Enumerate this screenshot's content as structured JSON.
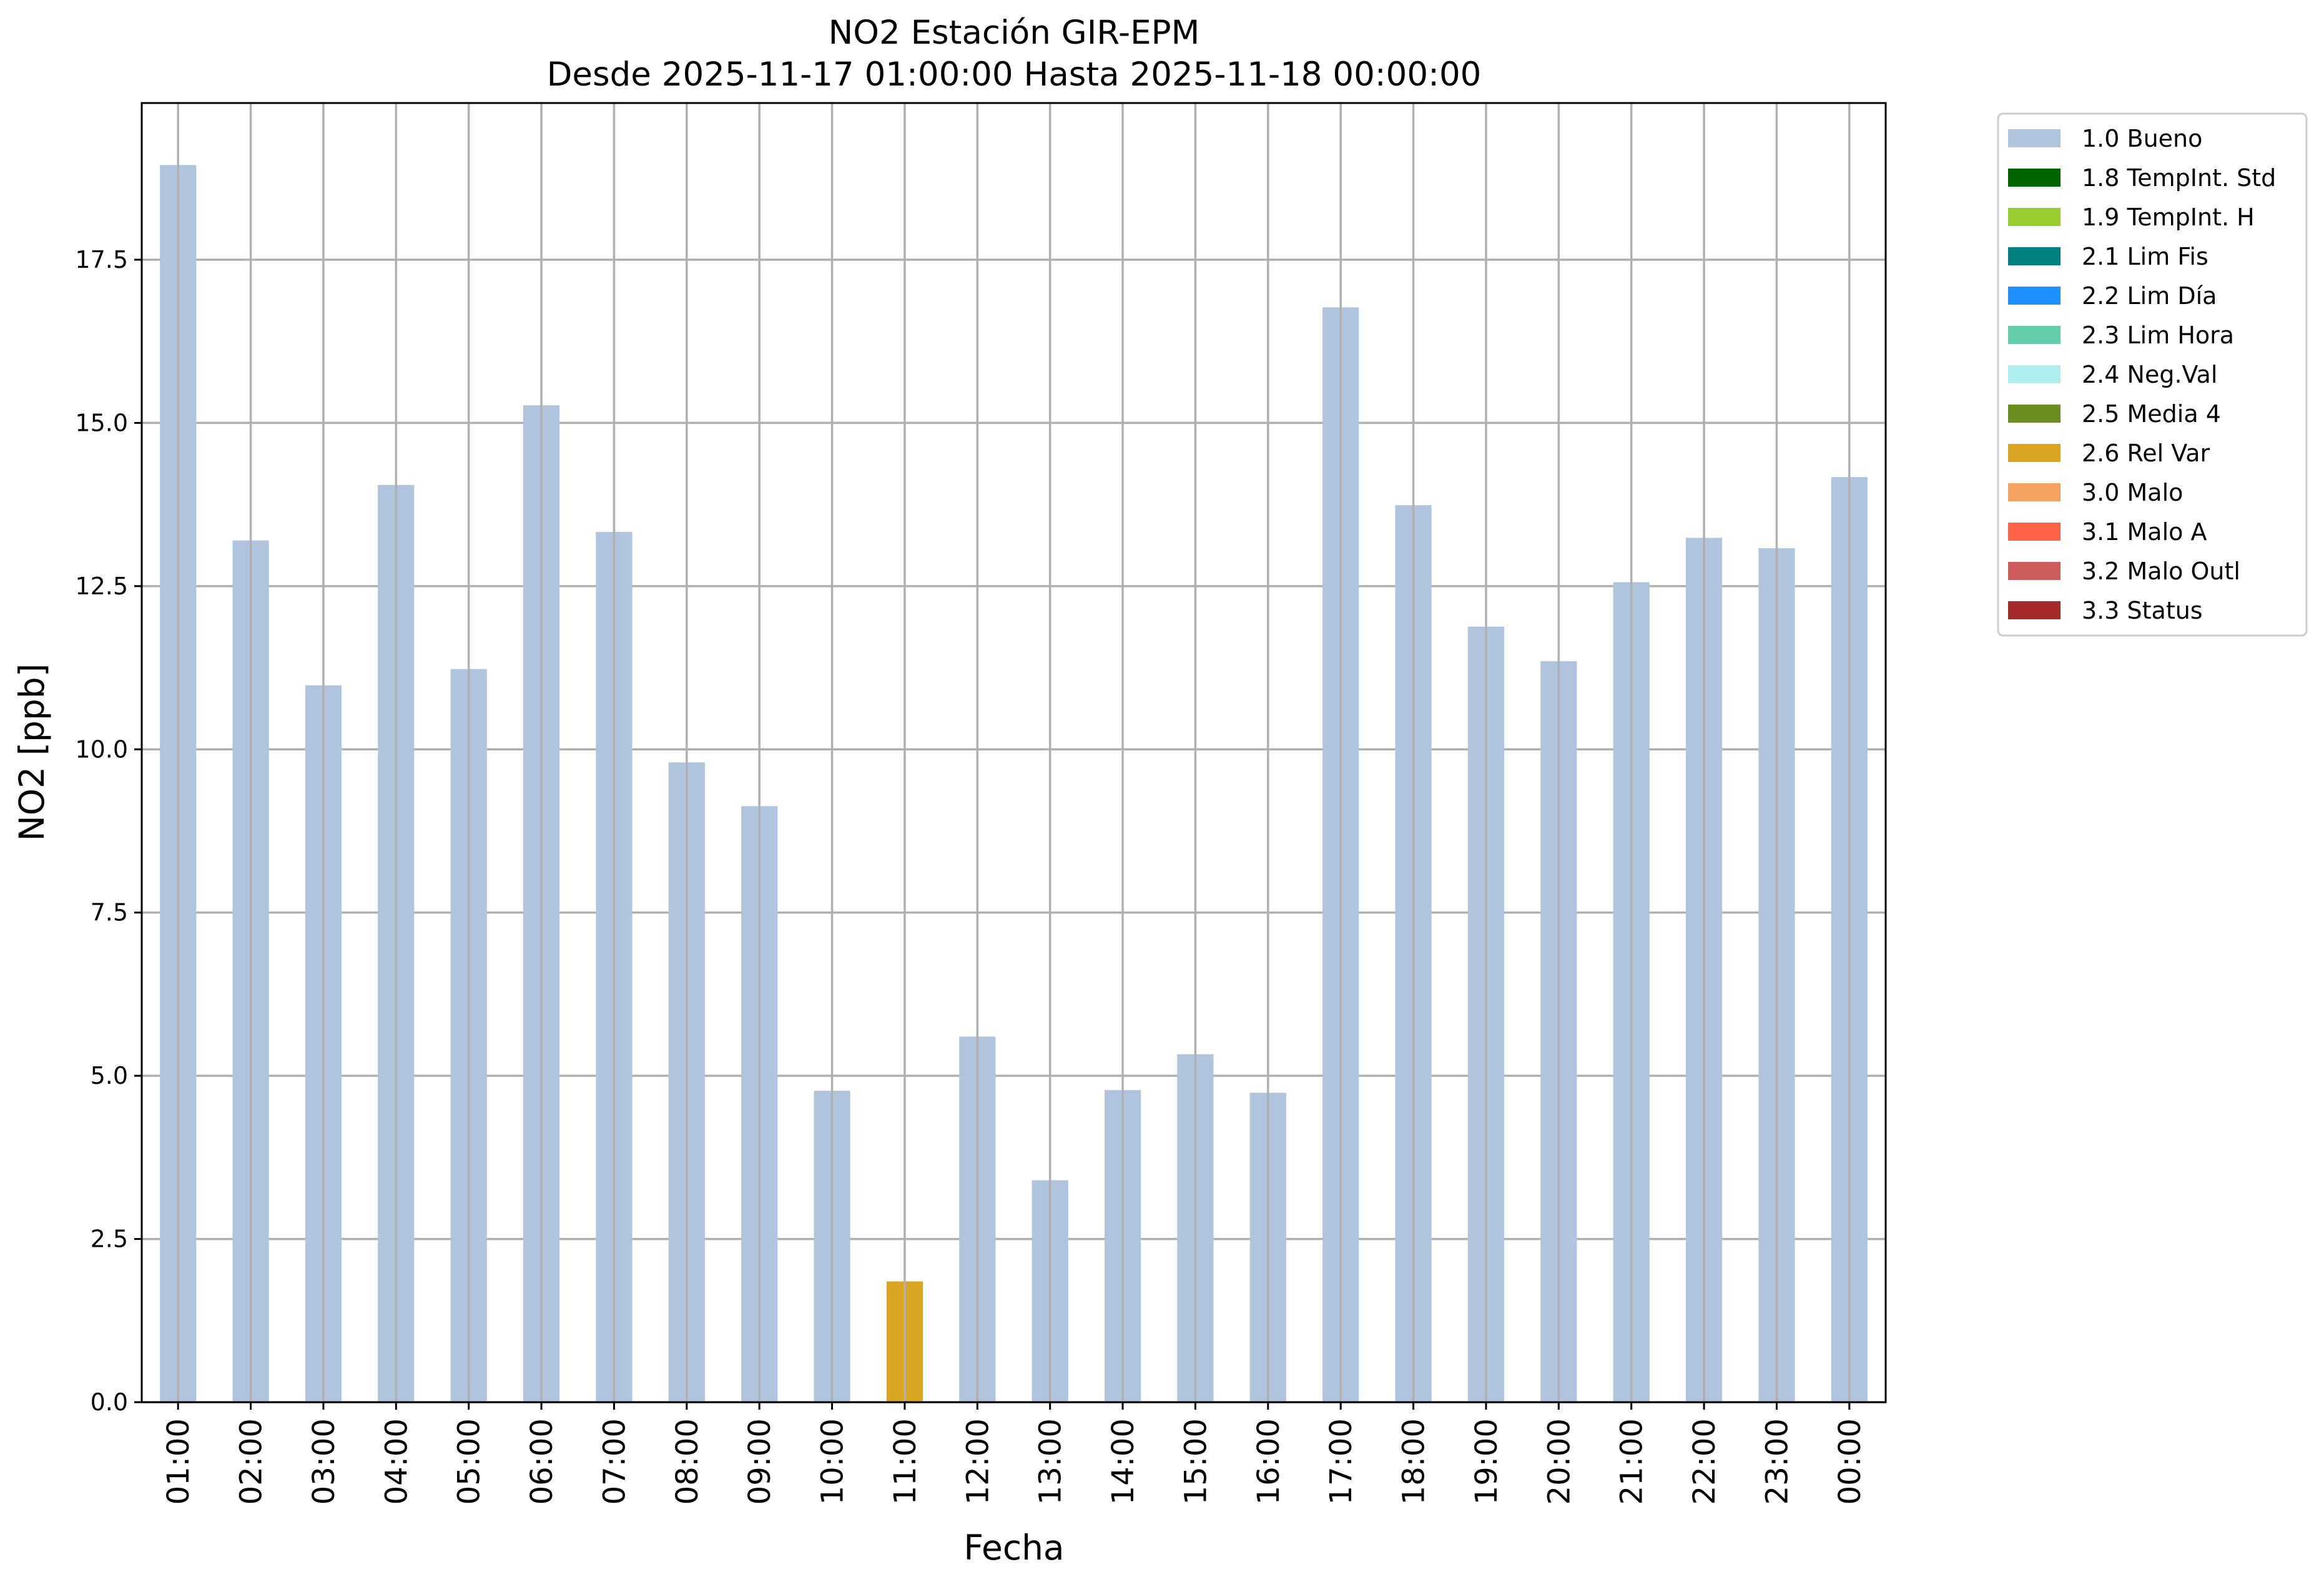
{
  "chart_data": {
    "type": "bar",
    "title": "NO2 Estación GIR-EPM",
    "subtitle": "Desde 2025-11-17 01:00:00 Hasta 2025-11-18 00:00:00",
    "xlabel": "Fecha",
    "ylabel": "NO2 [ppb]",
    "ylim": [
      0,
      19.9
    ],
    "yticks": [
      "0.0",
      "2.5",
      "5.0",
      "7.5",
      "10.0",
      "12.5",
      "15.0",
      "17.5"
    ],
    "ytick_values": [
      0,
      2.5,
      5,
      7.5,
      10,
      12.5,
      15,
      17.5
    ],
    "grid": true,
    "legend_position": "outside-top-right",
    "categories": [
      "01:00",
      "02:00",
      "03:00",
      "04:00",
      "05:00",
      "06:00",
      "07:00",
      "08:00",
      "09:00",
      "10:00",
      "11:00",
      "12:00",
      "13:00",
      "14:00",
      "15:00",
      "16:00",
      "17:00",
      "18:00",
      "19:00",
      "20:00",
      "21:00",
      "22:00",
      "23:00",
      "00:00"
    ],
    "values": [
      18.95,
      13.2,
      10.98,
      14.05,
      11.23,
      15.27,
      13.33,
      9.8,
      9.13,
      4.77,
      1.85,
      5.6,
      3.4,
      4.78,
      5.33,
      4.74,
      16.77,
      13.74,
      11.88,
      11.35,
      12.56,
      13.24,
      13.08,
      14.17
    ],
    "bar_flags": [
      "1.0 Bueno",
      "1.0 Bueno",
      "1.0 Bueno",
      "1.0 Bueno",
      "1.0 Bueno",
      "1.0 Bueno",
      "1.0 Bueno",
      "1.0 Bueno",
      "1.0 Bueno",
      "1.0 Bueno",
      "2.6 Rel Var",
      "1.0 Bueno",
      "1.0 Bueno",
      "1.0 Bueno",
      "1.0 Bueno",
      "1.0 Bueno",
      "1.0 Bueno",
      "1.0 Bueno",
      "1.0 Bueno",
      "1.0 Bueno",
      "1.0 Bueno",
      "1.0 Bueno",
      "1.0 Bueno",
      "1.0 Bueno"
    ],
    "legend": [
      {
        "label": "1.0 Bueno",
        "color": "#b0c4de"
      },
      {
        "label": "1.8 TempInt. Std",
        "color": "#006400"
      },
      {
        "label": "1.9 TempInt. H",
        "color": "#9acd32"
      },
      {
        "label": "2.1 Lim Fis",
        "color": "#008080"
      },
      {
        "label": "2.2 Lim Día",
        "color": "#1e90ff"
      },
      {
        "label": "2.3 Lim Hora",
        "color": "#66cdaa"
      },
      {
        "label": "2.4 Neg.Val",
        "color": "#afeeee"
      },
      {
        "label": "2.5 Media 4",
        "color": "#6b8e23"
      },
      {
        "label": "2.6 Rel Var",
        "color": "#daa520"
      },
      {
        "label": "3.0 Malo",
        "color": "#f4a460"
      },
      {
        "label": "3.1 Malo A",
        "color": "#ff6347"
      },
      {
        "label": "3.2 Malo Outl",
        "color": "#cd5c5c"
      },
      {
        "label": "3.3 Status",
        "color": "#a52a2a"
      }
    ]
  }
}
